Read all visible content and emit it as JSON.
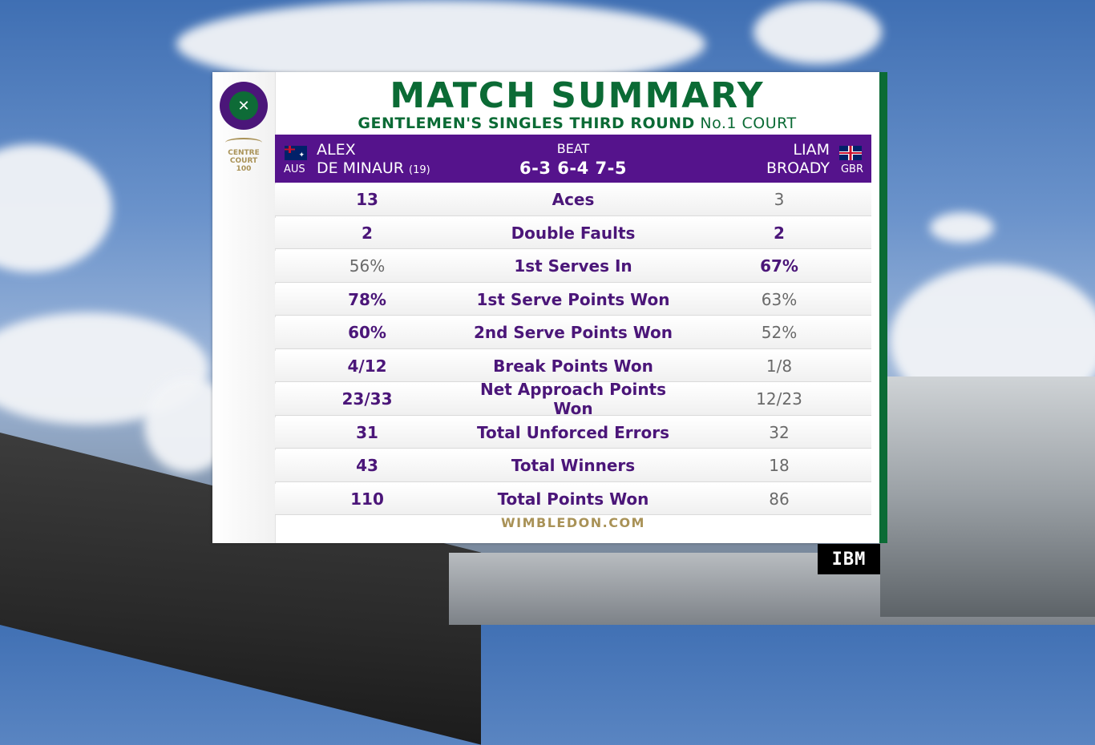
{
  "header": {
    "title": "MATCH SUMMARY",
    "event": "GENTLEMEN'S SINGLES THIRD ROUND",
    "court": "No.1 COURT"
  },
  "branding": {
    "logo_icon": "wimbledon-logo",
    "centre_court_line1": "CENTRE",
    "centre_court_line2": "COURT",
    "centre_court_line3": "100",
    "footer": "WIMBLEDON.COM",
    "sponsor": "IBM"
  },
  "match": {
    "player1": {
      "first": "ALEX",
      "last": "DE MINAUR",
      "seed": "(19)",
      "country": "AUS"
    },
    "player2": {
      "first": "LIAM",
      "last": "BROADY",
      "country": "GBR"
    },
    "result": "BEAT",
    "score": "6-3 6-4 7-5"
  },
  "stats": [
    {
      "label": "Aces",
      "p1": "13",
      "p2": "3",
      "leader": "p1"
    },
    {
      "label": "Double Faults",
      "p1": "2",
      "p2": "2",
      "leader": "both"
    },
    {
      "label": "1st Serves In",
      "p1": "56%",
      "p2": "67%",
      "leader": "p2"
    },
    {
      "label": "1st Serve Points Won",
      "p1": "78%",
      "p2": "63%",
      "leader": "p1"
    },
    {
      "label": "2nd Serve Points Won",
      "p1": "60%",
      "p2": "52%",
      "leader": "p1"
    },
    {
      "label": "Break Points Won",
      "p1": "4/12",
      "p2": "1/8",
      "leader": "p1"
    },
    {
      "label": "Net Approach Points Won",
      "p1": "23/33",
      "p2": "12/23",
      "leader": "p1"
    },
    {
      "label": "Total Unforced Errors",
      "p1": "31",
      "p2": "32",
      "leader": "p1"
    },
    {
      "label": "Total Winners",
      "p1": "43",
      "p2": "18",
      "leader": "p1"
    },
    {
      "label": "Total Points Won",
      "p1": "110",
      "p2": "86",
      "leader": "p1"
    }
  ],
  "colors": {
    "purple": "#4b1679",
    "green": "#0b6b35",
    "gold": "#a99257"
  }
}
